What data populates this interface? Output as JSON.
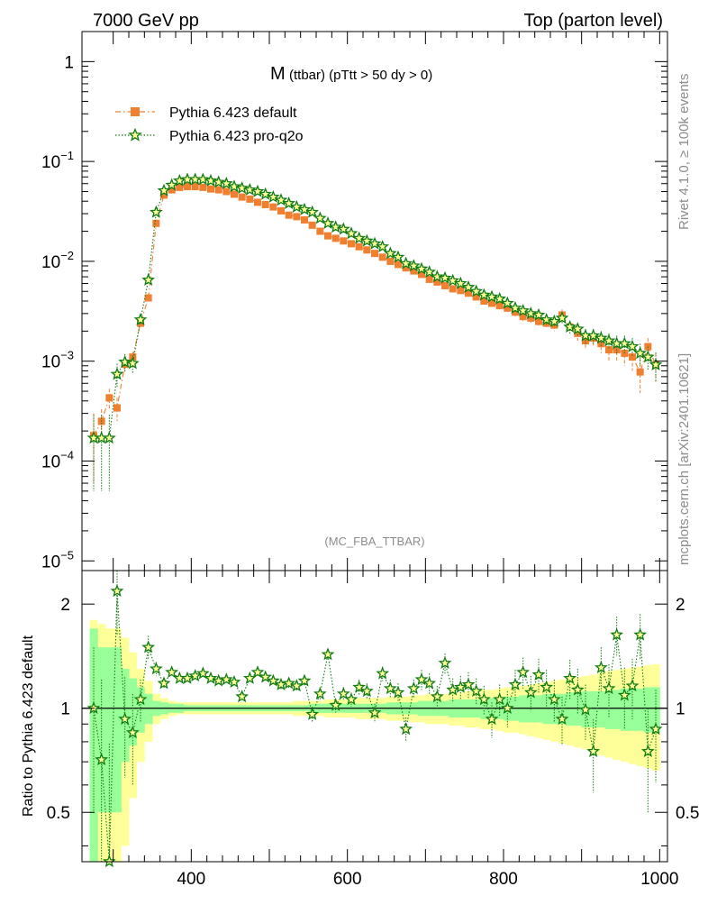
{
  "header": {
    "left": "7000 GeV pp",
    "right": "Top (parton level)"
  },
  "side_labels": {
    "rivet": "Rivet 4.1.0, ≥ 100k events",
    "mcplots": "mcplots.cern.ch [arXiv:2401.10621]"
  },
  "colors": {
    "default": "#f08030",
    "proq2o": "#107b10",
    "band_yellow": "#ffff99",
    "band_green": "#99ff99"
  },
  "chart_data": [
    {
      "type": "line",
      "role": "main",
      "title_main": "M",
      "title_rest": "(ttbar) (pTtt > 50 dy > 0)",
      "analysis_tag": "(MC_FBA_TTBAR)",
      "yscale": "log",
      "xlim": [
        260,
        1010
      ],
      "ylim": [
        8e-06,
        2
      ],
      "ytick_labels": [
        {
          "value": 1,
          "base": "1",
          "exp": ""
        },
        {
          "value": 0.1,
          "base": "10",
          "exp": "−1"
        },
        {
          "value": 0.01,
          "base": "10",
          "exp": "−2"
        },
        {
          "value": 0.001,
          "base": "10",
          "exp": "−3"
        },
        {
          "value": 0.0001,
          "base": "10",
          "exp": "−4"
        },
        {
          "value": 1e-05,
          "base": "10",
          "exp": "−5"
        }
      ],
      "legend": [
        {
          "name": "Pythia 6.423 default",
          "marker": "square"
        },
        {
          "name": "Pythia 6.423 pro-q2o",
          "marker": "star"
        }
      ],
      "x": [
        275,
        285,
        295,
        305,
        315,
        325,
        335,
        345,
        355,
        365,
        375,
        385,
        395,
        405,
        415,
        425,
        435,
        445,
        455,
        465,
        475,
        485,
        495,
        505,
        515,
        525,
        535,
        545,
        555,
        565,
        575,
        585,
        595,
        605,
        615,
        625,
        635,
        645,
        655,
        665,
        675,
        685,
        695,
        705,
        715,
        725,
        735,
        745,
        755,
        765,
        775,
        785,
        795,
        805,
        815,
        825,
        835,
        845,
        855,
        865,
        875,
        885,
        895,
        905,
        915,
        925,
        935,
        945,
        955,
        965,
        975,
        985,
        995
      ],
      "series": [
        {
          "name": "Pythia 6.423 default",
          "values": [
            0.00018,
            0.00025,
            0.00043,
            0.00034,
            0.00093,
            0.0011,
            0.0024,
            0.0043,
            0.024,
            0.046,
            0.052,
            0.055,
            0.056,
            0.056,
            0.055,
            0.053,
            0.052,
            0.05,
            0.047,
            0.044,
            0.042,
            0.039,
            0.037,
            0.035,
            0.032,
            0.029,
            0.028,
            0.026,
            0.023,
            0.02,
            0.018,
            0.017,
            0.016,
            0.015,
            0.014,
            0.013,
            0.012,
            0.011,
            0.01,
            0.0093,
            0.0086,
            0.008,
            0.0074,
            0.0066,
            0.0062,
            0.0057,
            0.0053,
            0.0051,
            0.0048,
            0.0044,
            0.004,
            0.0038,
            0.0036,
            0.0034,
            0.0031,
            0.0028,
            0.0027,
            0.0025,
            0.0024,
            0.0023,
            0.0029,
            0.0022,
            0.0019,
            0.0016,
            0.0017,
            0.0015,
            0.0013,
            0.0013,
            0.0012,
            0.0011,
            0.00078,
            0.0014,
            0.00092
          ],
          "errors": [
            0.00012,
            8e-05,
            0.0001,
            9e-05,
            0.00013,
            0.00014,
            0.0002,
            0.0003,
            0.0008,
            0.001,
            0.001,
            0.001,
            0.001,
            0.001,
            0.001,
            0.001,
            0.001,
            0.0009,
            0.0009,
            0.0008,
            0.0008,
            0.0007,
            0.0007,
            0.0007,
            0.0006,
            0.0006,
            0.0006,
            0.0005,
            0.0005,
            0.0005,
            0.0004,
            0.0004,
            0.0004,
            0.0004,
            0.0003,
            0.0003,
            0.0003,
            0.0003,
            0.0003,
            0.0003,
            0.0003,
            0.0003,
            0.0003,
            0.0003,
            0.0003,
            0.0003,
            0.0003,
            0.0003,
            0.0003,
            0.0003,
            0.0003,
            0.0003,
            0.0003,
            0.0003,
            0.0003,
            0.0003,
            0.0003,
            0.0003,
            0.0003,
            0.0003,
            0.0004,
            0.0003,
            0.0003,
            0.0003,
            0.0003,
            0.0003,
            0.0003,
            0.0003,
            0.0003,
            0.0003,
            0.0003,
            0.0003,
            0.0003
          ]
        },
        {
          "name": "Pythia 6.423 pro-q2o",
          "values": [
            0.00017,
            0.00017,
            0.00017,
            0.00074,
            0.00098,
            0.00095,
            0.0026,
            0.0065,
            0.031,
            0.051,
            0.058,
            0.064,
            0.066,
            0.066,
            0.066,
            0.064,
            0.062,
            0.06,
            0.056,
            0.054,
            0.052,
            0.05,
            0.047,
            0.044,
            0.041,
            0.038,
            0.035,
            0.033,
            0.031,
            0.027,
            0.024,
            0.022,
            0.021,
            0.019,
            0.017,
            0.016,
            0.015,
            0.014,
            0.012,
            0.011,
            0.0095,
            0.009,
            0.0084,
            0.0078,
            0.007,
            0.0068,
            0.0064,
            0.006,
            0.0055,
            0.005,
            0.0046,
            0.0044,
            0.0042,
            0.0038,
            0.0034,
            0.0032,
            0.003,
            0.0029,
            0.0026,
            0.0025,
            0.0027,
            0.0022,
            0.0021,
            0.0018,
            0.0018,
            0.0017,
            0.0016,
            0.0015,
            0.0015,
            0.0014,
            0.0012,
            0.0011,
            0.00092
          ],
          "errors": [
            0.00012,
            0.00012,
            0.00012,
            0.0002,
            0.0002,
            0.0002,
            0.0002,
            0.0004,
            0.001,
            0.001,
            0.001,
            0.001,
            0.001,
            0.001,
            0.001,
            0.001,
            0.001,
            0.001,
            0.0009,
            0.0009,
            0.0009,
            0.0008,
            0.0008,
            0.0007,
            0.0007,
            0.0007,
            0.0006,
            0.0006,
            0.0006,
            0.0005,
            0.0005,
            0.0005,
            0.0005,
            0.0004,
            0.0004,
            0.0004,
            0.0004,
            0.0004,
            0.0003,
            0.0003,
            0.0003,
            0.0003,
            0.0003,
            0.0003,
            0.0003,
            0.0003,
            0.0003,
            0.0003,
            0.0003,
            0.0003,
            0.0003,
            0.0003,
            0.0003,
            0.0003,
            0.0003,
            0.0003,
            0.0003,
            0.0003,
            0.0003,
            0.0003,
            0.0003,
            0.0003,
            0.0003,
            0.0003,
            0.0003,
            0.0003,
            0.0003,
            0.0003,
            0.0003,
            0.0003,
            0.0003,
            0.0003,
            0.0003
          ]
        }
      ]
    },
    {
      "type": "line",
      "role": "ratio",
      "ylabel": "Ratio to Pythia 6.423 default",
      "yscale": "log",
      "ylim": [
        0.36,
        2.5
      ],
      "ytick_labels": [
        {
          "value": 2,
          "label": "2"
        },
        {
          "value": 1,
          "label": "1"
        },
        {
          "value": 0.5,
          "label": "0.5"
        }
      ],
      "xtick_labels": [
        {
          "value": 400,
          "label": "400"
        },
        {
          "value": 600,
          "label": "600"
        },
        {
          "value": 800,
          "label": "800"
        },
        {
          "value": 1000,
          "label": "1000"
        }
      ],
      "band_green_halfwidth": [
        0.7,
        0.5,
        0.5,
        0.5,
        0.3,
        0.22,
        0.15,
        0.1,
        0.05,
        0.04,
        0.03,
        0.03,
        0.02,
        0.02,
        0.02,
        0.02,
        0.02,
        0.02,
        0.02,
        0.02,
        0.02,
        0.02,
        0.02,
        0.02,
        0.02,
        0.02,
        0.02,
        0.02,
        0.03,
        0.03,
        0.03,
        0.03,
        0.03,
        0.03,
        0.03,
        0.03,
        0.03,
        0.03,
        0.04,
        0.04,
        0.04,
        0.04,
        0.05,
        0.05,
        0.05,
        0.05,
        0.06,
        0.06,
        0.06,
        0.06,
        0.07,
        0.07,
        0.07,
        0.08,
        0.08,
        0.09,
        0.09,
        0.09,
        0.1,
        0.1,
        0.1,
        0.11,
        0.11,
        0.12,
        0.12,
        0.12,
        0.13,
        0.13,
        0.14,
        0.14,
        0.14,
        0.15,
        0.15
      ],
      "band_yellow_halfwidth": [
        0.8,
        0.75,
        0.7,
        0.7,
        0.6,
        0.45,
        0.3,
        0.2,
        0.1,
        0.07,
        0.05,
        0.04,
        0.04,
        0.04,
        0.04,
        0.04,
        0.04,
        0.04,
        0.04,
        0.04,
        0.04,
        0.04,
        0.04,
        0.04,
        0.04,
        0.04,
        0.05,
        0.05,
        0.05,
        0.05,
        0.06,
        0.06,
        0.06,
        0.06,
        0.07,
        0.07,
        0.07,
        0.07,
        0.08,
        0.08,
        0.08,
        0.09,
        0.09,
        0.1,
        0.1,
        0.1,
        0.11,
        0.11,
        0.12,
        0.12,
        0.13,
        0.13,
        0.14,
        0.15,
        0.15,
        0.16,
        0.17,
        0.18,
        0.19,
        0.2,
        0.21,
        0.22,
        0.23,
        0.24,
        0.25,
        0.27,
        0.28,
        0.29,
        0.3,
        0.31,
        0.32,
        0.33,
        0.34
      ],
      "series": [
        {
          "name": "Pythia 6.423 pro-q2o",
          "values": [
            1.0,
            0.71,
            0.34,
            2.18,
            0.93,
            0.85,
            1.06,
            1.5,
            1.3,
            1.18,
            1.27,
            1.22,
            1.22,
            1.24,
            1.26,
            1.22,
            1.2,
            1.21,
            1.19,
            1.08,
            1.22,
            1.27,
            1.23,
            1.2,
            1.17,
            1.18,
            1.16,
            1.2,
            0.96,
            1.1,
            1.43,
            1.02,
            1.1,
            1.06,
            1.15,
            1.12,
            0.97,
            1.26,
            1.14,
            1.11,
            0.87,
            1.14,
            1.21,
            1.18,
            1.08,
            1.35,
            1.13,
            1.15,
            1.17,
            1.12,
            1.06,
            0.93,
            1.06,
            1.0,
            1.17,
            1.27,
            1.11,
            1.25,
            1.15,
            1.06,
            0.93,
            1.22,
            1.13,
            0.99,
            0.75,
            1.31,
            1.14,
            1.63,
            1.09,
            1.16,
            1.63,
            0.75,
            0.87
          ],
          "errors": [
            0.5,
            0.5,
            0.45,
            0.55,
            0.3,
            0.25,
            0.15,
            0.12,
            0.06,
            0.04,
            0.03,
            0.03,
            0.03,
            0.03,
            0.03,
            0.03,
            0.03,
            0.03,
            0.03,
            0.03,
            0.03,
            0.03,
            0.03,
            0.03,
            0.04,
            0.04,
            0.04,
            0.04,
            0.05,
            0.05,
            0.05,
            0.05,
            0.05,
            0.05,
            0.06,
            0.06,
            0.06,
            0.06,
            0.07,
            0.07,
            0.07,
            0.07,
            0.08,
            0.08,
            0.08,
            0.09,
            0.09,
            0.09,
            0.1,
            0.1,
            0.1,
            0.11,
            0.11,
            0.12,
            0.12,
            0.13,
            0.13,
            0.14,
            0.14,
            0.15,
            0.15,
            0.16,
            0.17,
            0.18,
            0.18,
            0.19,
            0.2,
            0.21,
            0.22,
            0.23,
            0.24,
            0.25,
            0.26
          ]
        }
      ]
    }
  ]
}
